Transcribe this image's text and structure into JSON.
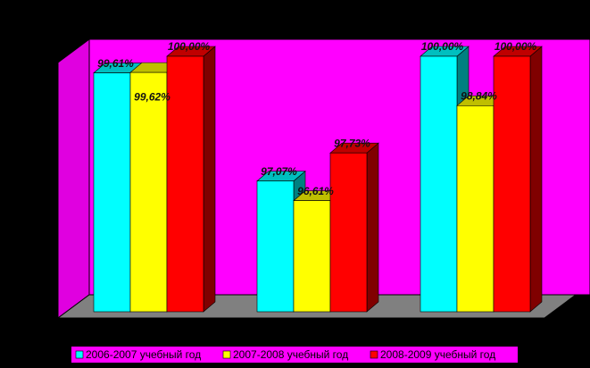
{
  "chart_data": {
    "type": "bar3d",
    "categories": [
      null,
      null,
      null
    ],
    "ylim": [
      94,
      100
    ],
    "series": [
      {
        "name": "2006-2007 учебный год",
        "color": "#00ffff",
        "values": [
          99.61,
          97.07,
          100.0
        ],
        "value_labels": [
          "99,61%",
          "97,07%",
          "100,00%"
        ]
      },
      {
        "name": "2007-2008 учебный год",
        "color": "#ffff00",
        "values": [
          99.62,
          96.61,
          98.84
        ],
        "value_labels": [
          "99,62%",
          "96,61%",
          "98,84%"
        ]
      },
      {
        "name": "2008-2009 учебный год",
        "color": "#ff0000",
        "values": [
          100.0,
          97.73,
          100.0
        ],
        "value_labels": [
          "100,00%",
          "97,73%",
          "100,00%"
        ]
      }
    ]
  }
}
